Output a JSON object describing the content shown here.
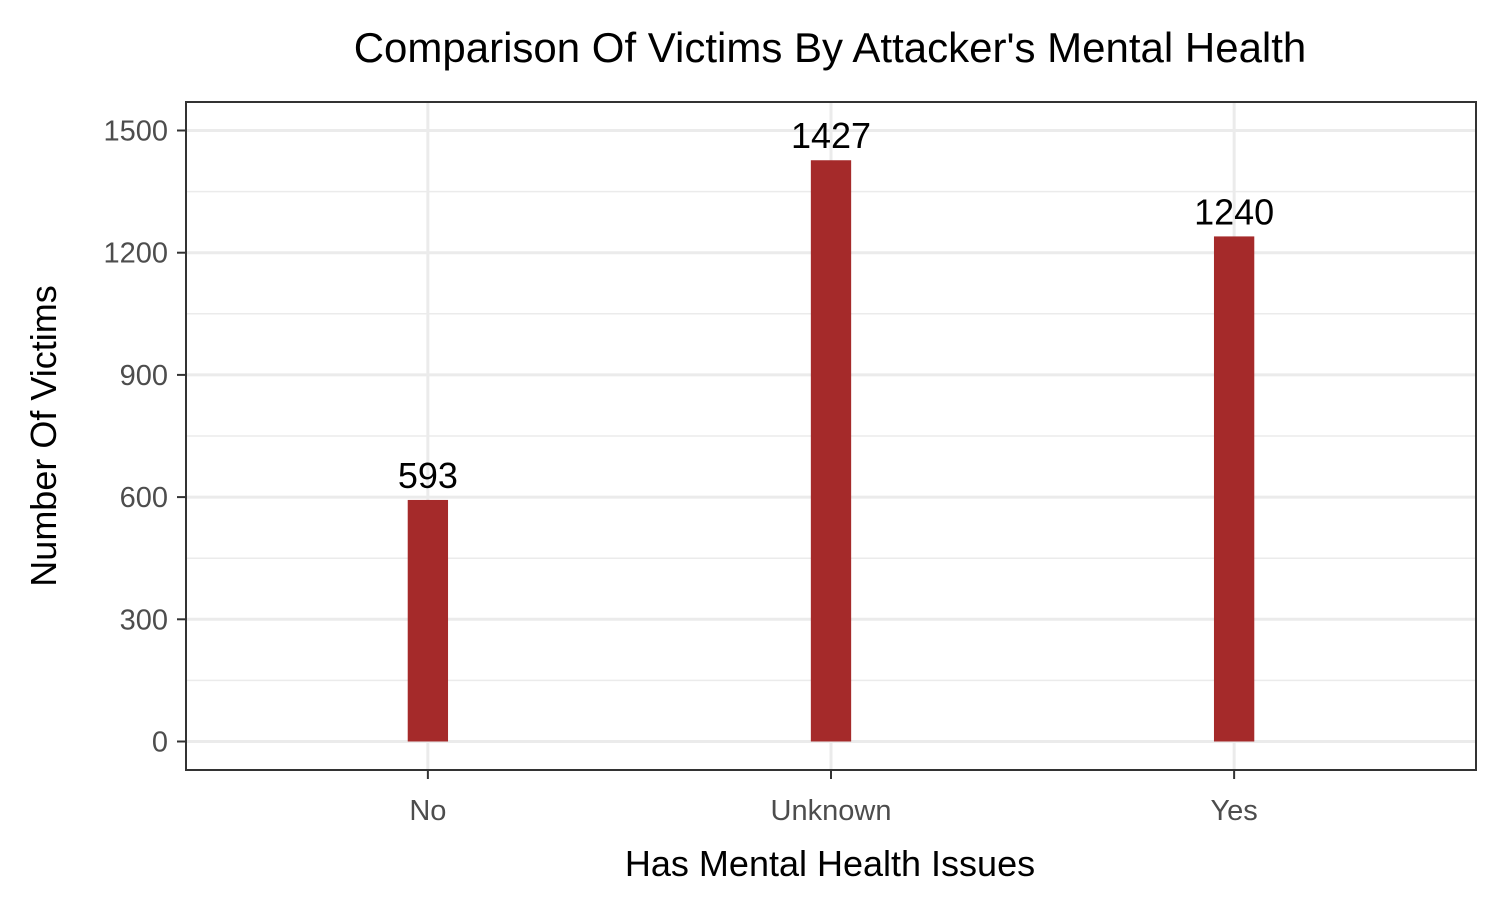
{
  "chart_data": {
    "type": "bar",
    "title": "Comparison Of Victims By Attacker's Mental Health",
    "xlabel": "Has Mental Health Issues",
    "ylabel": "Number Of Victims",
    "categories": [
      "No",
      "Unknown",
      "Yes"
    ],
    "values": [
      593,
      1427,
      1240
    ],
    "data_labels": [
      "593",
      "1427",
      "1240"
    ],
    "yticks": [
      0,
      300,
      600,
      900,
      1200,
      1500
    ],
    "ytick_labels": [
      "0",
      "300",
      "600",
      "900",
      "1200",
      "1500"
    ],
    "ylim": [
      -70,
      1570
    ],
    "grid": true,
    "legend": "none",
    "bar_color": "#a52a2a",
    "grid_color": "#ebebeb",
    "panel_border_color": "#333333"
  }
}
